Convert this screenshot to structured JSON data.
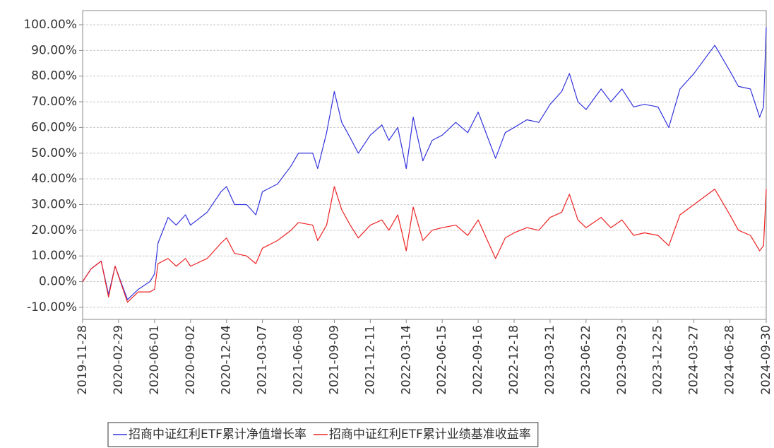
{
  "chart_data": {
    "type": "line",
    "x": [
      "2019-11-28",
      "2019-12-20",
      "2020-01-15",
      "2020-02-03",
      "2020-02-20",
      "2020-03-23",
      "2020-04-20",
      "2020-05-20",
      "2020-06-01",
      "2020-06-10",
      "2020-07-06",
      "2020-07-27",
      "2020-08-20",
      "2020-09-02",
      "2020-10-15",
      "2020-11-20",
      "2020-12-04",
      "2020-12-25",
      "2021-01-25",
      "2021-02-18",
      "2021-03-07",
      "2021-04-15",
      "2021-05-20",
      "2021-06-08",
      "2021-07-15",
      "2021-07-28",
      "2021-08-20",
      "2021-09-09",
      "2021-09-28",
      "2021-10-20",
      "2021-11-10",
      "2021-12-11",
      "2022-01-10",
      "2022-01-28",
      "2022-02-20",
      "2022-03-14",
      "2022-04-01",
      "2022-04-26",
      "2022-05-20",
      "2022-06-15",
      "2022-07-20",
      "2022-08-20",
      "2022-09-16",
      "2022-10-31",
      "2022-11-25",
      "2022-12-18",
      "2023-01-20",
      "2023-02-20",
      "2023-03-21",
      "2023-04-20",
      "2023-05-10",
      "2023-06-01",
      "2023-06-22",
      "2023-07-31",
      "2023-08-25",
      "2023-09-23",
      "2023-10-23",
      "2023-11-20",
      "2023-12-25",
      "2024-01-22",
      "2024-02-20",
      "2024-03-27",
      "2024-05-20",
      "2024-06-28",
      "2024-07-20",
      "2024-08-20",
      "2024-09-13",
      "2024-09-23",
      "2024-09-30"
    ],
    "series": [
      {
        "name": "招商中证红利ETF累计净值增长率",
        "color": "#3333dd",
        "values": [
          0,
          5,
          8,
          -5,
          6,
          -7,
          -3,
          0,
          3,
          15,
          25,
          22,
          26,
          22,
          27,
          35,
          37,
          30,
          30,
          26,
          35,
          38,
          45,
          50,
          50,
          44,
          58,
          74,
          62,
          56,
          50,
          57,
          61,
          55,
          60,
          44,
          64,
          47,
          55,
          57,
          62,
          58,
          66,
          48,
          58,
          60,
          63,
          62,
          69,
          74,
          81,
          70,
          67,
          75,
          70,
          75,
          68,
          69,
          68,
          60,
          75,
          81,
          92,
          82,
          76,
          75,
          64,
          68,
          99
        ]
      },
      {
        "name": "招商中证红利ETF累计业绩基准收益率",
        "color": "#ee2222",
        "values": [
          0,
          5,
          8,
          -6,
          6,
          -8,
          -4,
          -4,
          -3,
          7,
          9,
          6,
          9,
          6,
          9,
          15,
          17,
          11,
          10,
          7,
          13,
          16,
          20,
          23,
          22,
          16,
          22,
          37,
          28,
          22,
          17,
          22,
          24,
          20,
          26,
          12,
          29,
          16,
          20,
          21,
          22,
          18,
          24,
          9,
          17,
          19,
          21,
          20,
          25,
          27,
          34,
          24,
          21,
          25,
          21,
          24,
          18,
          19,
          18,
          14,
          26,
          30,
          36,
          26,
          20,
          18,
          12,
          14,
          36
        ]
      }
    ],
    "xlim": [
      "2019-11-28",
      "2024-09-30"
    ],
    "xticks": [
      "2019-11-28",
      "2020-02-29",
      "2020-06-01",
      "2020-09-02",
      "2020-12-04",
      "2021-03-07",
      "2021-06-08",
      "2021-09-09",
      "2021-12-11",
      "2022-03-14",
      "2022-06-15",
      "2022-09-16",
      "2022-12-18",
      "2023-03-21",
      "2023-06-22",
      "2023-09-23",
      "2023-12-25",
      "2024-03-27",
      "2024-06-28",
      "2024-09-30"
    ],
    "ylim": [
      -14.7,
      105.5
    ],
    "yticks": [
      {
        "value": -10,
        "label": "-10.00%"
      },
      {
        "value": 0,
        "label": "0.00%"
      },
      {
        "value": 10,
        "label": "10.00%"
      },
      {
        "value": 20,
        "label": "20.00%"
      },
      {
        "value": 30,
        "label": "30.00%"
      },
      {
        "value": 40,
        "label": "40.00%"
      },
      {
        "value": 50,
        "label": "50.00%"
      },
      {
        "value": 60,
        "label": "60.00%"
      },
      {
        "value": 70,
        "label": "70.00%"
      },
      {
        "value": 80,
        "label": "80.00%"
      },
      {
        "value": 90,
        "label": "90.00%"
      },
      {
        "value": 100,
        "label": "100.00%"
      }
    ],
    "grid": true
  }
}
